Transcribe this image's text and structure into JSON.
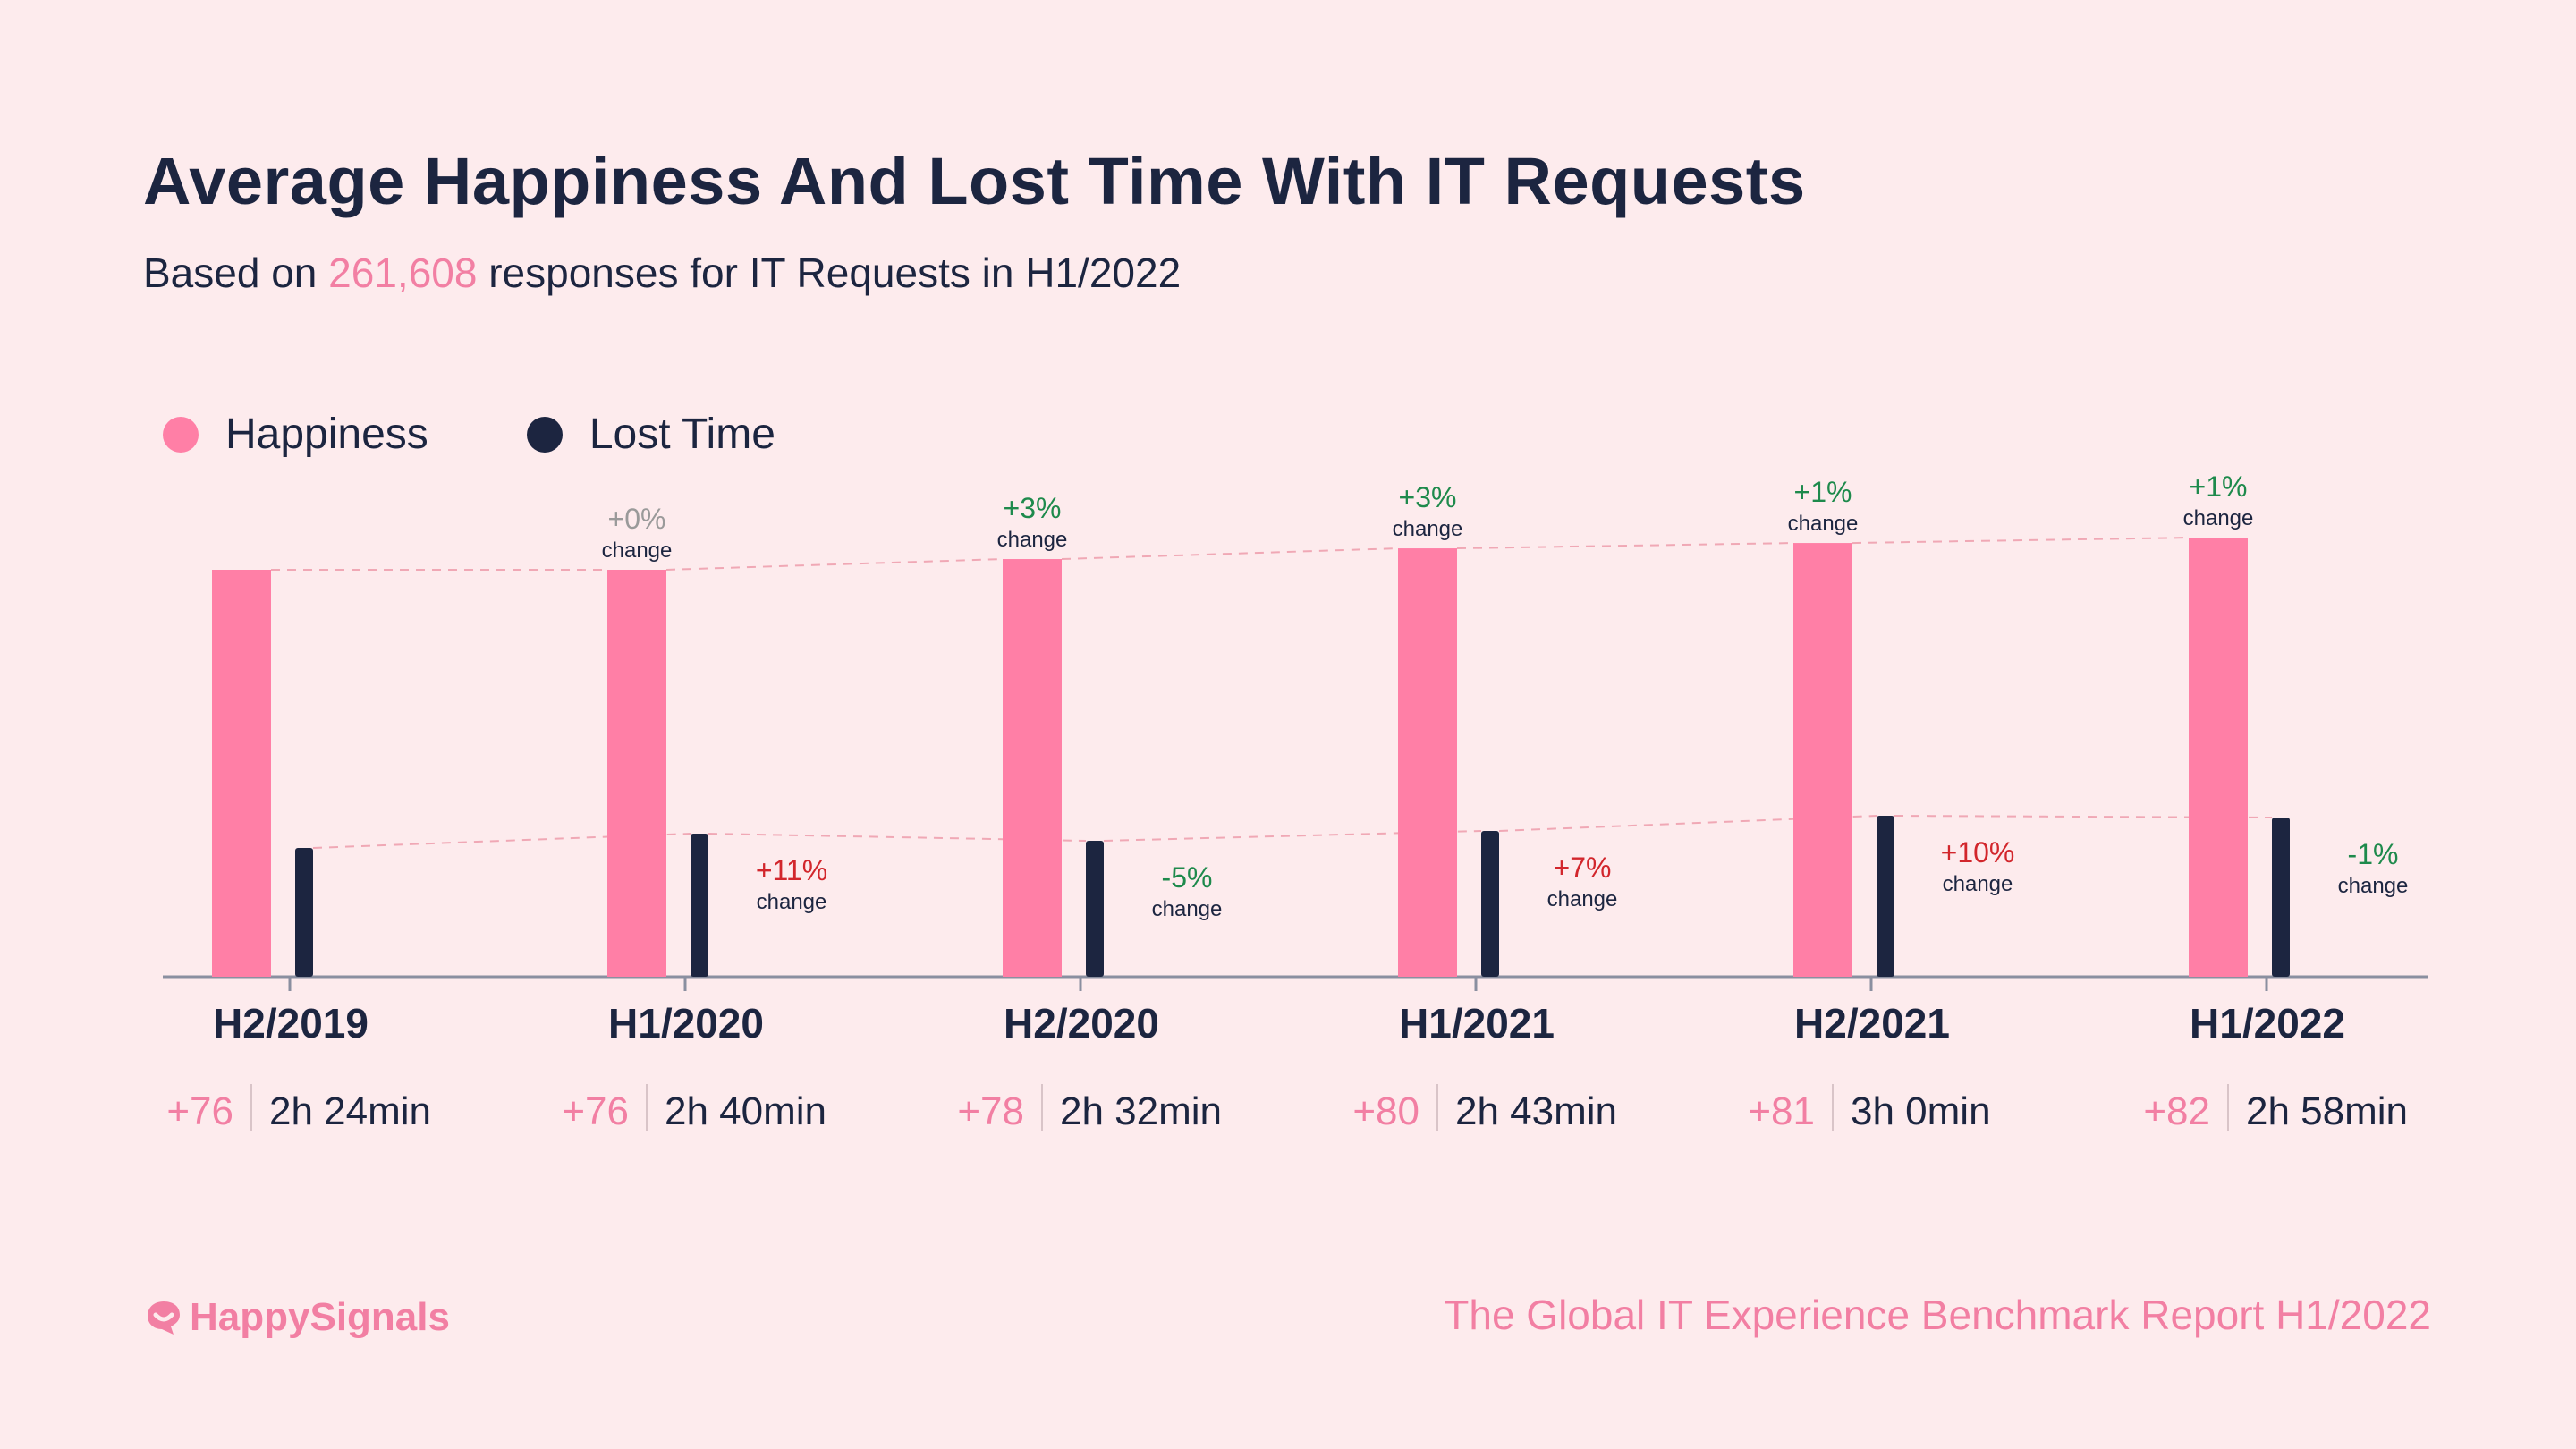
{
  "title": "Average Happiness And Lost Time With IT Requests",
  "subtitle": {
    "prefix": "Based on",
    "count": "261,608",
    "suffix": "responses for IT Requests in H1/2022"
  },
  "legend": [
    {
      "label": "Happiness",
      "color": "#ff7fa6"
    },
    {
      "label": "Lost Time",
      "color": "#1c2540"
    }
  ],
  "colors": {
    "happiness": "#ff7fa6",
    "lost_time": "#1c2540",
    "positive": "#1e8a4c",
    "negative": "#d2262c",
    "neutral": "#9a9a9a",
    "accent": "#f27fa3",
    "axis": "#8a8fa0",
    "guide_pink": "#f0a8b5",
    "guide_dark": "#f0a8b5"
  },
  "chart_data": {
    "type": "bar",
    "title": "Average Happiness And Lost Time With IT Requests",
    "categories": [
      "H2/2019",
      "H1/2020",
      "H2/2020",
      "H1/2021",
      "H2/2021",
      "H1/2022"
    ],
    "series": [
      {
        "name": "Happiness",
        "values": [
          76,
          76,
          78,
          80,
          81,
          82
        ],
        "labels": [
          "+76",
          "+76",
          "+78",
          "+80",
          "+81",
          "+82"
        ],
        "change": [
          "",
          "+0%",
          "+3%",
          "+3%",
          "+1%",
          "+1%"
        ],
        "change_tone": [
          "",
          "neutral",
          "positive",
          "positive",
          "positive",
          "positive"
        ]
      },
      {
        "name": "Lost Time",
        "values_minutes": [
          144,
          160,
          152,
          163,
          180,
          178
        ],
        "labels": [
          "2h 24min",
          "2h 40min",
          "2h 32min",
          "2h 43min",
          "3h 0min",
          "2h 58min"
        ],
        "change": [
          "",
          "+11%",
          "-5%",
          "+7%",
          "+10%",
          "-1%"
        ],
        "change_tone": [
          "",
          "negative",
          "positive",
          "negative",
          "negative",
          "positive"
        ]
      }
    ],
    "change_word": "change",
    "ylim_happiness": [
      0,
      100
    ],
    "ylim_lost_time_minutes": [
      0,
      330
    ],
    "legend_position": "top-left"
  },
  "footer": {
    "brand": "HappySignals",
    "report": "The Global IT Experience Benchmark Report H1/2022"
  }
}
